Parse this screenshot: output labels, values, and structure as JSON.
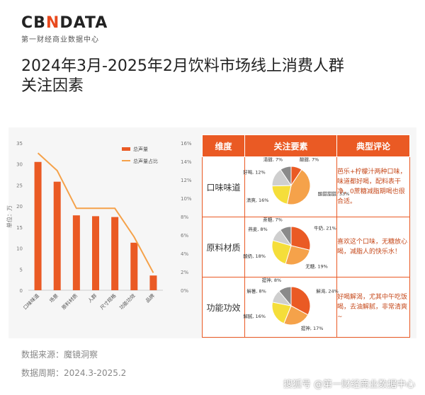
{
  "header": {
    "logo_prefix": "CB",
    "logo_accent": "N",
    "logo_suffix": "DATA",
    "logo_sub": "第一财经商业数据中心"
  },
  "title_line1": "2024年3月-2025年2月饮料市场线上消费人群",
  "title_line2": "关注因素",
  "source": "数据来源：魔镜洞察",
  "period": "数据周期：2024.3-2025.2",
  "footer": "搜狐号 @第一财经商业数据中心",
  "colors": {
    "accent": "#ea5a24",
    "line": "#f5a24a",
    "pie": [
      "#ea5a24",
      "#f5a24a",
      "#f5de3a",
      "#cfcfcf",
      "#8a8a8a"
    ]
  },
  "chart_data": [
    {
      "type": "bar",
      "title": "",
      "ylabel": "单位：万",
      "categories": [
        "口味味道",
        "场景",
        "原料材质",
        "人群",
        "尺寸规格",
        "功能功效",
        "品牌"
      ],
      "ylim": [
        0,
        35
      ],
      "yticks": [
        0,
        5,
        10,
        15,
        20,
        25,
        30,
        35
      ],
      "y2lim": [
        0,
        16
      ],
      "y2ticks": [
        "0%",
        "2%",
        "4%",
        "6%",
        "8%",
        "10%",
        "12%",
        "14%",
        "16%"
      ],
      "series": [
        {
          "name": "总声量",
          "type": "bar",
          "values": [
            30.5,
            25.8,
            17.8,
            17.6,
            17.4,
            11.3,
            3.5
          ]
        },
        {
          "name": "总声量占比",
          "type": "line",
          "axis": "right",
          "values": [
            14.9,
            13.0,
            8.9,
            8.9,
            8.9,
            5.8,
            1.9
          ]
        }
      ],
      "legend": "top-right",
      "grid": false
    },
    {
      "type": "table",
      "headers": [
        "维度",
        "关注要素",
        "典型评论"
      ],
      "rows": [
        {
          "dimension": "口味味道",
          "comment": "芭乐+柠檬汁两种口味，味道都好喝，配料表干净，0蔗糖减脂期喝也很合适。",
          "pie": [
            {
              "label": "酸甜, 7%",
              "value": 7
            },
            {
              "label": "酸甜甜甜, 33%",
              "value": 33
            },
            {
              "label": "清爽, 16%",
              "value": 16
            },
            {
              "label": "好喝, 12%",
              "value": 12
            },
            {
              "label": "清甜, 7%",
              "value": 7
            }
          ]
        },
        {
          "dimension": "原料材质",
          "comment": "喜欢这个口味，无糖放心喝，减脂人的快乐水！",
          "pie": [
            {
              "label": "牛奶, 21%",
              "value": 21
            },
            {
              "label": "无糖, 19%",
              "value": 19
            },
            {
              "label": "酸奶, 18%",
              "value": 18
            },
            {
              "label": "燕麦, 8%",
              "value": 8
            },
            {
              "label": "蔗糖, 7%",
              "value": 7
            }
          ]
        },
        {
          "dimension": "功能功效",
          "comment": "好喝解渴，尤其中午吃饭喝，去油解腻，非常清爽~",
          "pie": [
            {
              "label": "解渴, 24%",
              "value": 24
            },
            {
              "label": "提神, 17%",
              "value": 17
            },
            {
              "label": "解腻, 16%",
              "value": 16
            },
            {
              "label": "解暑, 8%",
              "value": 8
            },
            {
              "label": "提神, 8%",
              "value": 8
            }
          ]
        }
      ]
    }
  ]
}
